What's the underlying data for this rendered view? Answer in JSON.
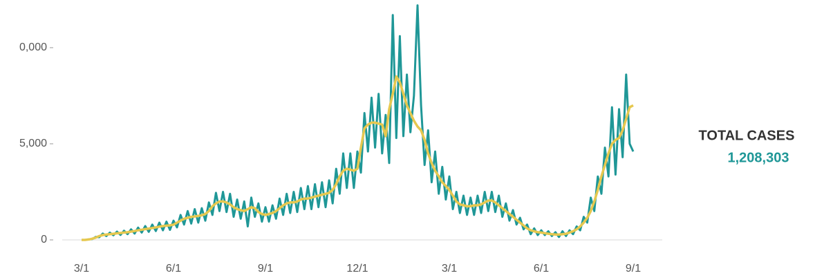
{
  "chart_data": {
    "type": "line",
    "categories": [
      "3/1",
      null,
      null,
      null,
      null,
      null,
      null,
      null,
      null,
      null,
      null,
      null,
      null,
      null,
      null,
      null,
      null,
      null,
      null,
      null,
      null,
      null,
      null,
      null,
      null,
      null,
      "6/1",
      null,
      null,
      null,
      null,
      null,
      null,
      null,
      null,
      null,
      null,
      null,
      null,
      null,
      null,
      null,
      null,
      null,
      null,
      null,
      null,
      null,
      null,
      null,
      null,
      null,
      "9/1",
      null,
      null,
      null,
      null,
      null,
      null,
      null,
      null,
      null,
      null,
      null,
      null,
      null,
      null,
      null,
      null,
      null,
      null,
      null,
      null,
      null,
      null,
      null,
      null,
      null,
      "12/1",
      null,
      null,
      null,
      null,
      null,
      null,
      null,
      null,
      null,
      null,
      null,
      null,
      null,
      null,
      null,
      null,
      null,
      null,
      null,
      null,
      null,
      null,
      null,
      null,
      null,
      "3/1",
      null,
      null,
      null,
      null,
      null,
      null,
      null,
      null,
      null,
      null,
      null,
      null,
      null,
      null,
      null,
      null,
      null,
      null,
      null,
      null,
      null,
      null,
      null,
      null,
      null,
      "6/1",
      null,
      null,
      null,
      null,
      null,
      null,
      null,
      null,
      null,
      null,
      null,
      null,
      null,
      null,
      null,
      null,
      null,
      null,
      null,
      null,
      null,
      null,
      null,
      null,
      null,
      "9/1"
    ],
    "series": [
      {
        "color": "#1f9797",
        "values": [
          0,
          0,
          30,
          40,
          160,
          140,
          330,
          200,
          380,
          240,
          430,
          260,
          480,
          300,
          550,
          330,
          640,
          380,
          720,
          420,
          800,
          460,
          900,
          500,
          950,
          520,
          1000,
          650,
          1300,
          800,
          1500,
          850,
          1600,
          900,
          1650,
          1000,
          1950,
          1300,
          2450,
          1500,
          2500,
          1450,
          2400,
          1200,
          2100,
          1100,
          2000,
          700,
          2200,
          1200,
          1900,
          950,
          1700,
          950,
          1800,
          1100,
          2150,
          1300,
          2400,
          1400,
          2500,
          1450,
          2700,
          1600,
          2800,
          1600,
          2900,
          1700,
          3000,
          1700,
          3100,
          1900,
          3700,
          2400,
          4500,
          2700,
          4500,
          2700,
          4600,
          3500,
          6600,
          4600,
          7400,
          4800,
          7600,
          4500,
          6500,
          4000,
          11700,
          5300,
          10600,
          5400,
          8600,
          5600,
          7500,
          12200,
          7000,
          3900,
          5700,
          3000,
          4600,
          2400,
          3800,
          2100,
          3300,
          1600,
          2500,
          1400,
          2300,
          1300,
          2200,
          1300,
          2300,
          1400,
          2500,
          1500,
          2500,
          1450,
          2300,
          1200,
          1900,
          1000,
          1550,
          800,
          1150,
          550,
          800,
          300,
          600,
          250,
          500,
          250,
          450,
          200,
          400,
          150,
          450,
          200,
          500,
          300,
          700,
          500,
          1200,
          900,
          2200,
          1500,
          3300,
          2400,
          4800,
          3300,
          6900,
          3400,
          6800,
          4300,
          8600,
          5000,
          4600
        ]
      },
      {
        "color": "#e6c84f",
        "values": [
          0,
          0,
          20,
          60,
          120,
          200,
          250,
          280,
          300,
          320,
          340,
          360,
          380,
          400,
          430,
          460,
          500,
          530,
          560,
          590,
          620,
          650,
          690,
          720,
          740,
          760,
          790,
          900,
          1000,
          1100,
          1150,
          1200,
          1220,
          1250,
          1280,
          1350,
          1500,
          1750,
          1900,
          2000,
          2000,
          1950,
          1850,
          1700,
          1600,
          1550,
          1500,
          1600,
          1700,
          1650,
          1450,
          1350,
          1300,
          1350,
          1400,
          1500,
          1650,
          1800,
          1900,
          1950,
          1950,
          2000,
          2100,
          2150,
          2150,
          2200,
          2250,
          2300,
          2350,
          2400,
          2450,
          2600,
          2900,
          3300,
          3600,
          3700,
          3650,
          3600,
          3700,
          4800,
          5800,
          6000,
          6100,
          6100,
          6050,
          6000,
          5400,
          6800,
          7600,
          8500,
          8200,
          7600,
          7000,
          6600,
          6200,
          5900,
          5700,
          5200,
          4500,
          4000,
          3600,
          3300,
          3000,
          2800,
          2600,
          2300,
          2000,
          1850,
          1800,
          1750,
          1750,
          1800,
          1800,
          1850,
          1950,
          2050,
          2050,
          1950,
          1800,
          1650,
          1500,
          1350,
          1200,
          1050,
          900,
          750,
          600,
          500,
          450,
          400,
          380,
          350,
          320,
          300,
          280,
          280,
          300,
          320,
          380,
          450,
          550,
          700,
          900,
          1150,
          1500,
          2000,
          2600,
          3300,
          3900,
          4500,
          5000,
          5200,
          5300,
          5700,
          6300,
          6900,
          7000
        ]
      }
    ],
    "ylim": [
      0,
      12300
    ],
    "yticks": [
      0,
      {
        "value": 5000,
        "label": "5,000"
      },
      {
        "value": 10000,
        "label": "0,000"
      }
    ],
    "annotation": {
      "title": "TOTAL CASES",
      "value": "1,208,303"
    }
  }
}
